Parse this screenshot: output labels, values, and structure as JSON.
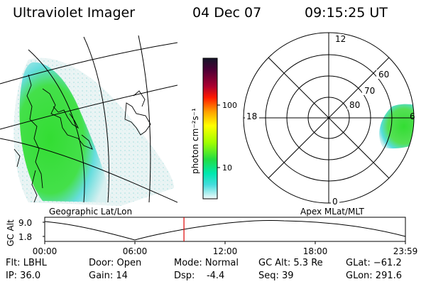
{
  "header": {
    "title": "Ultraviolet Imager",
    "date": "04 Dec 07",
    "time": "09:15:25 UT"
  },
  "colorbar": {
    "unit_label": "photon cm⁻²s⁻¹",
    "ticks": [
      "100",
      "10"
    ],
    "colors": [
      "#1a1a2e",
      "#5a0030",
      "#b00030",
      "#ff0000",
      "#ff5a00",
      "#ffaa00",
      "#ffff00",
      "#aaff00",
      "#33dd33",
      "#00ee66",
      "#00dddd",
      "#88eeee",
      "#ffffff"
    ]
  },
  "left_map": {
    "caption": "Geographic Lat/Lon"
  },
  "right_map": {
    "caption": "Apex MLat/MLT",
    "mlt_labels": {
      "top": "12",
      "left": "18",
      "right": "6",
      "bottom": "0"
    },
    "lat_labels": [
      "60",
      "70",
      "80"
    ]
  },
  "altitude_plot": {
    "ylabel": "GC Alt",
    "yticks": [
      "9.0",
      "1.8"
    ],
    "xticks": [
      "00:00",
      "06:00",
      "12:00",
      "18:00",
      "23:59"
    ],
    "current_fraction": 0.386,
    "marker_color": "#dd0000"
  },
  "info": {
    "flt": "Flt: LBHL",
    "ip": "IP: 36.0",
    "door": "Door: Open",
    "gain": "Gain: 14",
    "mode": "Mode: Normal",
    "dsp": "Dsp:    -4.4",
    "gc_alt": "GC Alt: 5.3 Re",
    "seq": "Seq: 39",
    "glat": "GLat: −61.2",
    "glon": "GLon: 291.6"
  }
}
